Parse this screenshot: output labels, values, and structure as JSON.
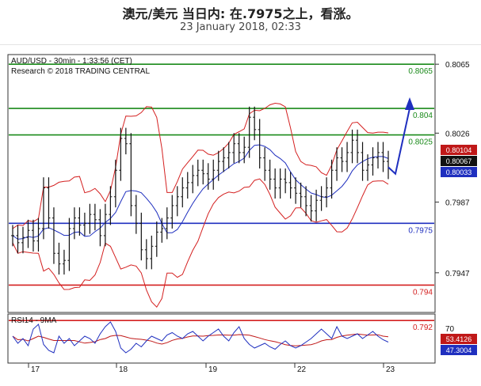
{
  "header": {
    "title": "澳元/美元 当日内: 在.7975之上，看涨。",
    "subtitle": "23 January 2018, 02:33"
  },
  "chart_data": [
    {
      "type": "line",
      "info_line1": "AUD/USD - 30min - 1:33:56 (CET)",
      "info_line2": "Research © 2018 TRADING CENTRAL",
      "ylim": [
        0.7925,
        0.807
      ],
      "y_ticks": [
        "0.8065",
        "0.8026",
        "0.7987",
        "0.7947"
      ],
      "x_ticks": [
        "17",
        "18",
        "19",
        "22",
        "23"
      ],
      "levels": [
        {
          "value": 0.8065,
          "label": "0.8065",
          "color": "#1a8a1a"
        },
        {
          "value": 0.804,
          "label": "0.804",
          "color": "#1a8a1a"
        },
        {
          "value": 0.8025,
          "label": "0.8025",
          "color": "#1a8a1a"
        },
        {
          "value": 0.7975,
          "label": "0.7975",
          "color": "#1f2fbf"
        },
        {
          "value": 0.794,
          "label": "0.794",
          "color": "#d42020"
        },
        {
          "value": 0.792,
          "label": "0.792",
          "color": "#d42020"
        }
      ],
      "price_tags": [
        {
          "value": 0.80104,
          "label": "0.80104",
          "bg": "#c01818"
        },
        {
          "value": 0.80067,
          "label": "0.80067",
          "bg": "#111111"
        },
        {
          "value": 0.80033,
          "label": "0.80033",
          "bg": "#1f2fbf"
        }
      ],
      "close": [
        0.7968,
        0.7964,
        0.7967,
        0.7971,
        0.7965,
        0.7972,
        0.7995,
        0.7978,
        0.7958,
        0.7952,
        0.7954,
        0.7972,
        0.7978,
        0.7974,
        0.7975,
        0.798,
        0.7977,
        0.7968,
        0.798,
        0.799,
        0.8005,
        0.8023,
        0.802,
        0.7985,
        0.7975,
        0.796,
        0.7955,
        0.7962,
        0.797,
        0.7972,
        0.7978,
        0.7985,
        0.799,
        0.7995,
        0.7998,
        0.8002,
        0.8005,
        0.8003,
        0.8,
        0.8005,
        0.801,
        0.8012,
        0.8015,
        0.802,
        0.8015,
        0.8018,
        0.8035,
        0.8028,
        0.8012,
        0.8005,
        0.8,
        0.7995,
        0.8,
        0.7998,
        0.7995,
        0.7992,
        0.799,
        0.7985,
        0.7982,
        0.7988,
        0.799,
        0.7995,
        0.8005,
        0.8012,
        0.801,
        0.8015,
        0.8022,
        0.8015,
        0.8005,
        0.8008,
        0.8012,
        0.8015,
        0.801,
        0.8006
      ],
      "projection": [
        0.80067,
        0.8003,
        0.804
      ],
      "rsi": {
        "label": "RSI14 - 9MA",
        "ylim": [
          30,
          70
        ],
        "tick": "70",
        "tags": [
          {
            "value": 53.4126,
            "label": "53.4126",
            "bg": "#c01818"
          },
          {
            "value": 47.3004,
            "label": "47.3004",
            "bg": "#1f2fbf"
          }
        ],
        "values": [
          52,
          46,
          50,
          44,
          58,
          62,
          45,
          40,
          38,
          52,
          46,
          50,
          44,
          48,
          52,
          50,
          46,
          54,
          60,
          64,
          56,
          42,
          38,
          41,
          46,
          43,
          48,
          52,
          50,
          48,
          53,
          55,
          52,
          50,
          54,
          56,
          52,
          48,
          52,
          55,
          58,
          52,
          48,
          55,
          60,
          50,
          45,
          42,
          44,
          46,
          43,
          41,
          45,
          48,
          44,
          42,
          44,
          47,
          50,
          54,
          58,
          54,
          50,
          60,
          52,
          50,
          52,
          54,
          50,
          53,
          56,
          52,
          49,
          47
        ]
      }
    }
  ]
}
